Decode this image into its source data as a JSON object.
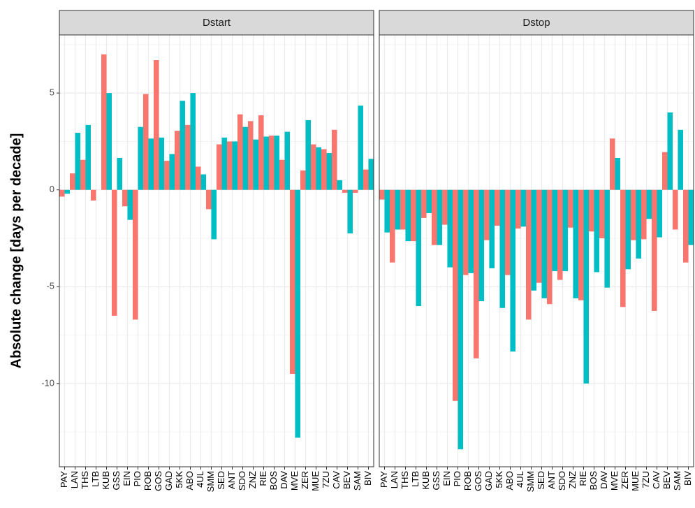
{
  "chart_data": [
    {
      "type": "bar",
      "title": "Dstart",
      "y_label": "Absolute change [days per decade]",
      "categories": [
        "PAY",
        "LAN",
        "THS",
        "LTB",
        "KUB",
        "GSS",
        "EIN",
        "PIO",
        "ROB",
        "GOS",
        "GAD",
        "5KK",
        "ABO",
        "4UL",
        "SMM",
        "SED",
        "ANT",
        "SDO",
        "ZNZ",
        "RIE",
        "BOS",
        "DAV",
        "MVE",
        "ZER",
        "MUE",
        "7ZU",
        "CAV",
        "BEV",
        "SAM",
        "BIV"
      ],
      "series": [
        {
          "color": "#F8766D",
          "values": [
            -0.35,
            0.85,
            1.55,
            -0.55,
            7.0,
            -6.5,
            -0.85,
            -6.7,
            4.95,
            6.7,
            1.5,
            3.05,
            3.35,
            1.2,
            -1.0,
            2.35,
            2.5,
            3.9,
            3.55,
            3.85,
            2.8,
            1.55,
            -9.5,
            1.0,
            2.35,
            2.1,
            3.1,
            -0.15,
            -0.15,
            1.05
          ]
        },
        {
          "color": "#00BFC4",
          "values": [
            -0.2,
            2.95,
            3.35,
            0,
            5.0,
            1.65,
            -1.55,
            3.25,
            2.65,
            2.7,
            1.85,
            4.6,
            5.0,
            0.8,
            -2.55,
            2.7,
            2.5,
            3.25,
            2.6,
            2.75,
            2.8,
            3.0,
            -12.8,
            3.6,
            2.2,
            1.9,
            0.5,
            -2.25,
            4.35,
            1.6
          ]
        }
      ],
      "ylim": [
        -14.3,
        8.0
      ],
      "yticks": [
        -10,
        -5,
        0,
        5
      ],
      "grid": true
    },
    {
      "type": "bar",
      "title": "Dstop",
      "categories": [
        "PAY",
        "LAN",
        "THS",
        "LTB",
        "KUB",
        "GSS",
        "EIN",
        "PIO",
        "ROB",
        "GOS",
        "GAD",
        "5KK",
        "ABO",
        "4UL",
        "SMM",
        "SED",
        "ANT",
        "SDO",
        "ZNZ",
        "RIE",
        "BOS",
        "DAV",
        "MVE",
        "ZER",
        "MUE",
        "7ZU",
        "CAV",
        "BEV",
        "SAM",
        "BIV"
      ],
      "series": [
        {
          "color": "#F8766D",
          "values": [
            -0.5,
            -3.75,
            -2.05,
            -2.65,
            -1.45,
            -2.85,
            -1.8,
            -10.9,
            -4.4,
            -8.7,
            -2.6,
            -1.85,
            -4.4,
            -2.0,
            -6.7,
            -4.8,
            -5.9,
            -4.65,
            -1.95,
            -5.7,
            -2.15,
            -2.5,
            2.65,
            -6.05,
            -2.6,
            -2.55,
            -6.25,
            1.95,
            -2.05,
            -3.75
          ]
        },
        {
          "color": "#00BFC4",
          "values": [
            -2.2,
            -2.05,
            -2.65,
            -6.0,
            -1.2,
            -2.85,
            -4.0,
            -13.4,
            -4.3,
            -5.75,
            -4.05,
            -6.1,
            -8.35,
            -1.9,
            -5.2,
            -5.6,
            -4.2,
            -4.2,
            -5.6,
            -10.0,
            -4.25,
            -5.05,
            1.65,
            -4.1,
            -3.55,
            -1.5,
            -2.45,
            4.0,
            3.1,
            -2.85
          ]
        }
      ],
      "ylim": [
        -14.3,
        8.0
      ],
      "yticks": [
        -10,
        -5,
        0,
        5
      ],
      "grid": true
    }
  ]
}
